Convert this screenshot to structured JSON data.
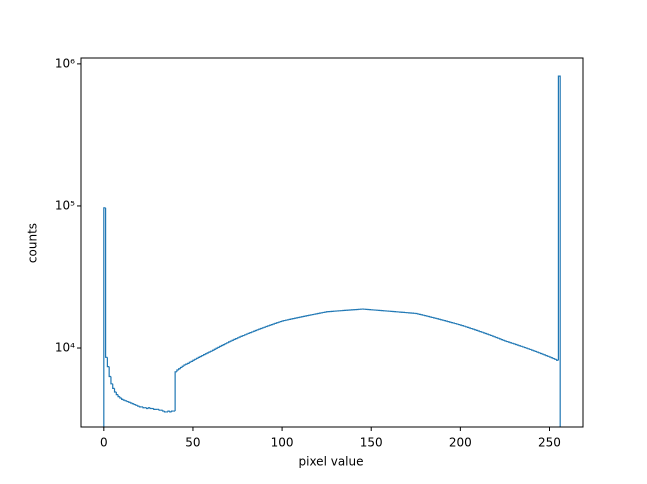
{
  "chart_data": {
    "type": "histogram",
    "xlabel": "pixel value",
    "ylabel": "counts",
    "log_y": true,
    "color": "#1f77b4",
    "bins": [
      0,
      1,
      2,
      3,
      4,
      5,
      6,
      7,
      8,
      9,
      10,
      11,
      12,
      13,
      14,
      15,
      16,
      17,
      18,
      19,
      20,
      21,
      22,
      23,
      24,
      25,
      26,
      27,
      28,
      29,
      30,
      31,
      32,
      33,
      34,
      35,
      36,
      37,
      38,
      39,
      40,
      41,
      42,
      43,
      44,
      45,
      46,
      47,
      48,
      49,
      50,
      51,
      52,
      53,
      54,
      55,
      56,
      57,
      58,
      59,
      60,
      61,
      62,
      63,
      64,
      65,
      66,
      67,
      68,
      69,
      70,
      71,
      72,
      73,
      74,
      75,
      76,
      77,
      78,
      79,
      80,
      81,
      82,
      83,
      84,
      85,
      86,
      87,
      88,
      89,
      90,
      91,
      92,
      93,
      94,
      95,
      96,
      97,
      98,
      99,
      100,
      101,
      102,
      103,
      104,
      105,
      106,
      107,
      108,
      109,
      110,
      111,
      112,
      113,
      114,
      115,
      116,
      117,
      118,
      119,
      120,
      121,
      122,
      123,
      124,
      125,
      126,
      127,
      128,
      129,
      130,
      131,
      132,
      133,
      134,
      135,
      136,
      137,
      138,
      139,
      140,
      141,
      142,
      143,
      144,
      145,
      146,
      147,
      148,
      149,
      150,
      151,
      152,
      153,
      154,
      155,
      156,
      157,
      158,
      159,
      160,
      161,
      162,
      163,
      164,
      165,
      166,
      167,
      168,
      169,
      170,
      171,
      172,
      173,
      174,
      175,
      176,
      177,
      178,
      179,
      180,
      181,
      182,
      183,
      184,
      185,
      186,
      187,
      188,
      189,
      190,
      191,
      192,
      193,
      194,
      195,
      196,
      197,
      198,
      199,
      200,
      201,
      202,
      203,
      204,
      205,
      206,
      207,
      208,
      209,
      210,
      211,
      212,
      213,
      214,
      215,
      216,
      217,
      218,
      219,
      220,
      221,
      222,
      223,
      224,
      225,
      226,
      227,
      228,
      229,
      230,
      231,
      232,
      233,
      234,
      235,
      236,
      237,
      238,
      239,
      240,
      241,
      242,
      243,
      244,
      245,
      246,
      247,
      248,
      249,
      250,
      251,
      252,
      253,
      254,
      255,
      256
    ],
    "values": [
      97000,
      8600,
      7400,
      6300,
      5600,
      5200,
      4900,
      4700,
      4550,
      4450,
      4350,
      4300,
      4250,
      4200,
      4150,
      4100,
      4050,
      4000,
      3950,
      3900,
      3850,
      3850,
      3800,
      3800,
      3750,
      3800,
      3750,
      3750,
      3700,
      3700,
      3700,
      3650,
      3650,
      3600,
      3550,
      3550,
      3600,
      3550,
      3600,
      3600,
      6800,
      7000,
      7150,
      7300,
      7450,
      7600,
      7700,
      7800,
      7950,
      8050,
      8200,
      8330,
      8460,
      8590,
      8720,
      8850,
      8980,
      9110,
      9240,
      9370,
      9500,
      9650,
      9800,
      9960,
      10110,
      10270,
      10420,
      10570,
      10730,
      10880,
      11040,
      11190,
      11340,
      11500,
      11650,
      11800,
      11950,
      12100,
      12240,
      12390,
      12540,
      12690,
      12840,
      12980,
      13130,
      13280,
      13430,
      13580,
      13720,
      13870,
      14020,
      14170,
      14320,
      14460,
      14610,
      14760,
      14910,
      15060,
      15200,
      15350,
      15500,
      15600,
      15700,
      15800,
      15900,
      16000,
      16100,
      16200,
      16300,
      16400,
      16500,
      16600,
      16700,
      16800,
      16900,
      17000,
      17100,
      17200,
      17300,
      17400,
      17500,
      17600,
      17700,
      17800,
      17900,
      18000,
      18040,
      18080,
      18120,
      18160,
      18200,
      18240,
      18280,
      18320,
      18360,
      18400,
      18440,
      18480,
      18520,
      18560,
      18600,
      18640,
      18680,
      18720,
      18760,
      18800,
      18760,
      18710,
      18670,
      18630,
      18580,
      18540,
      18500,
      18460,
      18410,
      18370,
      18330,
      18280,
      18240,
      18200,
      18160,
      18110,
      18070,
      18030,
      17980,
      17940,
      17900,
      17860,
      17810,
      17770,
      17730,
      17680,
      17640,
      17600,
      17550,
      17500,
      17380,
      17260,
      17140,
      17020,
      16900,
      16780,
      16660,
      16540,
      16420,
      16300,
      16180,
      16060,
      15940,
      15820,
      15700,
      15580,
      15460,
      15340,
      15220,
      15100,
      14980,
      14860,
      14740,
      14620,
      14500,
      14370,
      14240,
      14100,
      13970,
      13840,
      13710,
      13580,
      13440,
      13310,
      13180,
      13050,
      12920,
      12780,
      12650,
      12520,
      12390,
      12260,
      12120,
      11990,
      11860,
      11730,
      11600,
      11460,
      11330,
      11200,
      11100,
      11000,
      10890,
      10790,
      10690,
      10590,
      10480,
      10380,
      10280,
      10180,
      10070,
      9970,
      9870,
      9770,
      9660,
      9560,
      9460,
      9360,
      9250,
      9150,
      9050,
      8950,
      8840,
      8740,
      8640,
      8540,
      8430,
      8330,
      8200,
      820000
    ],
    "xlim": [
      -12.8,
      268.8
    ],
    "ylim": [
      2780,
      1100000
    ],
    "xticks": [
      0,
      50,
      100,
      150,
      200,
      250
    ],
    "yticks": [
      {
        "value": 10000,
        "label": "10⁴"
      },
      {
        "value": 100000,
        "label": "10⁵"
      },
      {
        "value": 1000000,
        "label": "10⁶"
      }
    ]
  }
}
